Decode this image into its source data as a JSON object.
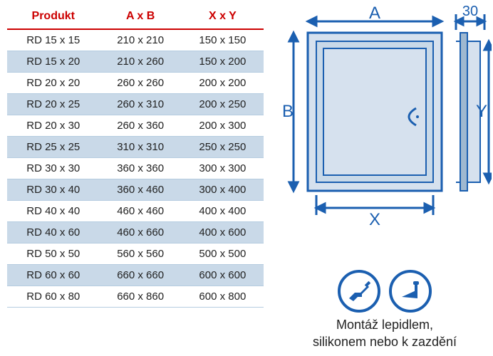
{
  "table": {
    "headers": [
      "Produkt",
      "A x B",
      "X x Y"
    ],
    "rows": [
      [
        "RD 15 x 15",
        "210 x 210",
        "150 x 150"
      ],
      [
        "RD 15 x 20",
        "210 x 260",
        "150 x 200"
      ],
      [
        "RD 20 x 20",
        "260 x 260",
        "200 x 200"
      ],
      [
        "RD 20 x 25",
        "260 x 310",
        "200 x 250"
      ],
      [
        "RD 20 x 30",
        "260 x 360",
        "200 x 300"
      ],
      [
        "RD 25 x 25",
        "310 x 310",
        "250 x 250"
      ],
      [
        "RD 30 x 30",
        "360 x 360",
        "300 x 300"
      ],
      [
        "RD 30 x 40",
        "360 x 460",
        "300 x 400"
      ],
      [
        "RD 40 x 40",
        "460 x 460",
        "400 x 400"
      ],
      [
        "RD 40 x 60",
        "460 x 660",
        "400 x 600"
      ],
      [
        "RD 50 x 50",
        "560 x 560",
        "500 x 500"
      ],
      [
        "RD 60 x 60",
        "660 x 660",
        "600 x 600"
      ],
      [
        "RD 60 x 80",
        "660 x 860",
        "600 x 800"
      ]
    ]
  },
  "diagram": {
    "label_A": "A",
    "label_B": "B",
    "label_X": "X",
    "label_Y": "Y",
    "label_30": "30",
    "colors": {
      "stroke": "#1b5fb0",
      "fill_light": "#d6e1ee",
      "fill_mid": "#9fb8d0"
    }
  },
  "caption": {
    "line1": "Montáž lepidlem,",
    "line2": "silikonem nebo k zazdění"
  }
}
